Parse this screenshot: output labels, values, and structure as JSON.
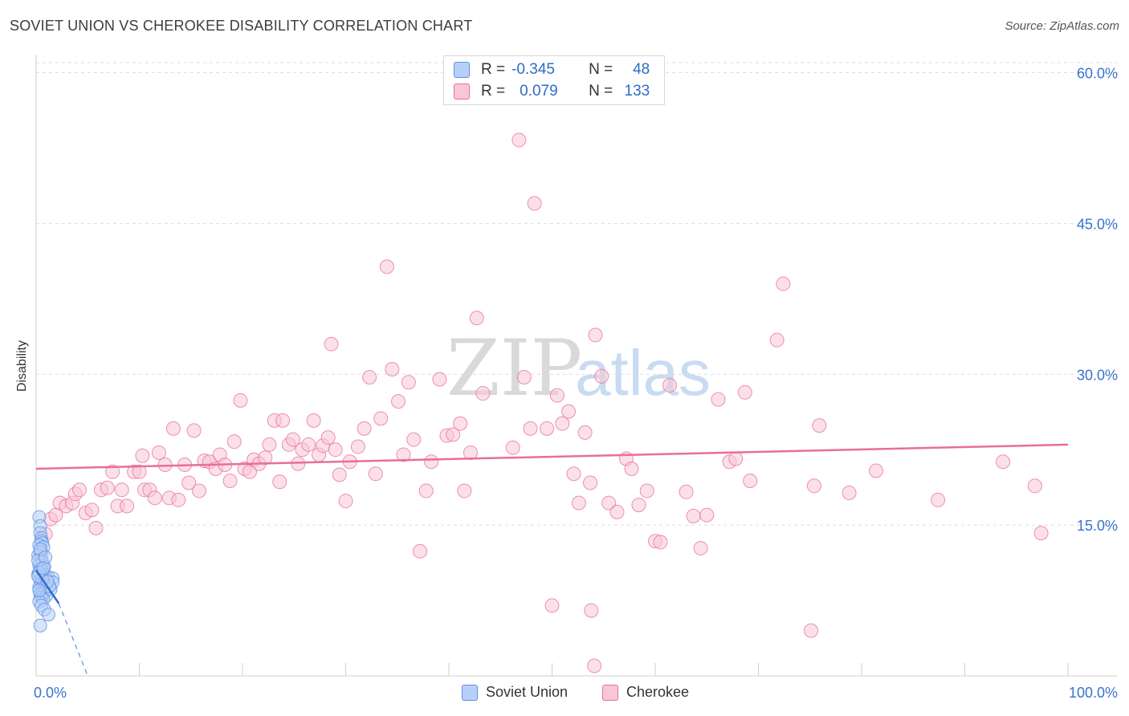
{
  "header": {
    "title": "SOVIET UNION VS CHEROKEE DISABILITY CORRELATION CHART",
    "source": "Source: ZipAtlas.com"
  },
  "watermark": {
    "part1": "ZIP",
    "part2": "atlas"
  },
  "legend": {
    "r_label": "R =",
    "n_label": "N =",
    "rows": [
      {
        "name": "Soviet Union",
        "r": "-0.345",
        "n": "48"
      },
      {
        "name": "Cherokee",
        "r": "0.079",
        "n": "133"
      }
    ]
  },
  "chart_data": {
    "type": "scatter",
    "title": "SOVIET UNION VS CHEROKEE DISABILITY CORRELATION CHART",
    "ylabel": "Disability",
    "xlabel": "",
    "xlim": [
      0,
      100
    ],
    "ylim": [
      0,
      61
    ],
    "x_tick_labels": [
      "0.0%",
      "100.0%"
    ],
    "y_ticks": [
      15,
      30,
      45,
      60
    ],
    "y_tick_labels": [
      "15.0%",
      "30.0%",
      "45.0%",
      "60.0%"
    ],
    "grid": "horizontal dashed",
    "legend_position": "top-center",
    "colors": {
      "soviet": "#5b8fe0",
      "soviet_fill": "#b7d0f7",
      "cherokee": "#e86e9a",
      "cherokee_fill": "#f7c6d7",
      "tick_text": "#3a72cf"
    },
    "series": [
      {
        "name": "Soviet Union",
        "r": -0.345,
        "n": 48,
        "trend": {
          "x": [
            0,
            2.2
          ],
          "y": [
            10.5,
            7.2
          ]
        },
        "trend_extension": {
          "x": [
            2.2,
            5
          ],
          "y": [
            7.2,
            0
          ]
        },
        "points": [
          [
            0.3,
            15.8
          ],
          [
            0.4,
            14.9
          ],
          [
            0.4,
            14.2
          ],
          [
            0.5,
            13.7
          ],
          [
            0.5,
            13.4
          ],
          [
            0.6,
            13.2
          ],
          [
            0.3,
            13.0
          ],
          [
            0.7,
            12.8
          ],
          [
            0.4,
            12.3
          ],
          [
            0.2,
            12.0
          ],
          [
            0.5,
            11.6
          ],
          [
            0.6,
            11.3
          ],
          [
            0.3,
            11.0
          ],
          [
            0.8,
            10.9
          ],
          [
            0.4,
            10.6
          ],
          [
            0.6,
            10.4
          ],
          [
            0.2,
            10.1
          ],
          [
            0.9,
            10.0
          ],
          [
            1.2,
            9.8
          ],
          [
            1.6,
            9.7
          ],
          [
            1.6,
            9.3
          ],
          [
            0.4,
            9.5
          ],
          [
            0.7,
            9.2
          ],
          [
            0.5,
            9.0
          ],
          [
            0.3,
            8.8
          ],
          [
            1.0,
            8.7
          ],
          [
            1.4,
            8.6
          ],
          [
            0.6,
            8.4
          ],
          [
            0.8,
            8.3
          ],
          [
            0.4,
            8.1
          ],
          [
            1.0,
            8.0
          ],
          [
            0.5,
            7.8
          ],
          [
            0.7,
            7.6
          ],
          [
            0.3,
            7.4
          ],
          [
            1.3,
            8.9
          ],
          [
            0.2,
            11.5
          ],
          [
            0.4,
            12.6
          ],
          [
            0.9,
            11.8
          ],
          [
            0.6,
            9.6
          ],
          [
            0.3,
            10.3
          ],
          [
            0.5,
            7.0
          ],
          [
            0.8,
            6.6
          ],
          [
            1.2,
            6.1
          ],
          [
            0.4,
            5.0
          ],
          [
            0.2,
            9.9
          ],
          [
            0.7,
            10.7
          ],
          [
            1.1,
            9.4
          ],
          [
            0.3,
            8.5
          ]
        ]
      },
      {
        "name": "Cherokee",
        "r": 0.079,
        "n": 133,
        "trend": {
          "x": [
            0,
            100
          ],
          "y": [
            20.6,
            23.0
          ]
        },
        "points": [
          [
            0.5,
            12.2
          ],
          [
            0.9,
            14.1
          ],
          [
            1.4,
            15.6
          ],
          [
            1.9,
            16.0
          ],
          [
            2.3,
            17.2
          ],
          [
            2.9,
            16.9
          ],
          [
            3.5,
            17.2
          ],
          [
            3.8,
            18.1
          ],
          [
            4.2,
            18.5
          ],
          [
            4.8,
            16.2
          ],
          [
            5.4,
            16.5
          ],
          [
            5.8,
            14.7
          ],
          [
            6.3,
            18.5
          ],
          [
            6.9,
            18.7
          ],
          [
            7.4,
            20.3
          ],
          [
            7.9,
            16.9
          ],
          [
            8.3,
            18.5
          ],
          [
            8.8,
            16.9
          ],
          [
            9.5,
            20.3
          ],
          [
            10.0,
            20.3
          ],
          [
            10.3,
            21.9
          ],
          [
            10.5,
            18.5
          ],
          [
            11.0,
            18.5
          ],
          [
            11.5,
            17.7
          ],
          [
            11.9,
            22.2
          ],
          [
            12.5,
            21.0
          ],
          [
            12.9,
            17.7
          ],
          [
            13.3,
            24.6
          ],
          [
            13.8,
            17.5
          ],
          [
            14.4,
            21.0
          ],
          [
            14.8,
            19.2
          ],
          [
            15.3,
            24.4
          ],
          [
            15.8,
            18.4
          ],
          [
            16.3,
            21.4
          ],
          [
            16.8,
            21.3
          ],
          [
            17.4,
            20.6
          ],
          [
            17.8,
            22.0
          ],
          [
            18.3,
            21.0
          ],
          [
            18.8,
            19.4
          ],
          [
            19.2,
            23.3
          ],
          [
            19.8,
            27.4
          ],
          [
            20.2,
            20.6
          ],
          [
            20.7,
            20.3
          ],
          [
            21.1,
            21.5
          ],
          [
            21.6,
            21.1
          ],
          [
            22.2,
            21.7
          ],
          [
            22.6,
            23.0
          ],
          [
            23.1,
            25.4
          ],
          [
            23.6,
            19.3
          ],
          [
            23.9,
            25.4
          ],
          [
            24.5,
            23.0
          ],
          [
            24.9,
            23.5
          ],
          [
            25.4,
            21.1
          ],
          [
            25.8,
            22.5
          ],
          [
            26.4,
            23.0
          ],
          [
            26.9,
            25.4
          ],
          [
            27.4,
            22.0
          ],
          [
            27.8,
            22.9
          ],
          [
            28.3,
            23.7
          ],
          [
            28.6,
            33.0
          ],
          [
            29.0,
            22.5
          ],
          [
            29.4,
            20.0
          ],
          [
            30.0,
            17.4
          ],
          [
            30.4,
            21.3
          ],
          [
            31.2,
            22.8
          ],
          [
            31.8,
            24.6
          ],
          [
            32.3,
            29.7
          ],
          [
            32.9,
            20.1
          ],
          [
            33.4,
            25.6
          ],
          [
            34.0,
            40.7
          ],
          [
            34.5,
            30.5
          ],
          [
            35.1,
            27.3
          ],
          [
            35.6,
            22.0
          ],
          [
            36.1,
            29.2
          ],
          [
            36.6,
            23.5
          ],
          [
            37.2,
            12.4
          ],
          [
            37.8,
            18.4
          ],
          [
            38.3,
            21.3
          ],
          [
            39.1,
            29.5
          ],
          [
            39.8,
            23.9
          ],
          [
            40.4,
            24.0
          ],
          [
            41.1,
            25.1
          ],
          [
            41.5,
            18.4
          ],
          [
            42.1,
            22.2
          ],
          [
            42.7,
            35.6
          ],
          [
            43.3,
            28.1
          ],
          [
            46.2,
            22.7
          ],
          [
            46.8,
            53.3
          ],
          [
            47.3,
            29.7
          ],
          [
            47.9,
            24.6
          ],
          [
            48.3,
            47.0
          ],
          [
            49.5,
            24.6
          ],
          [
            50.0,
            7.0
          ],
          [
            50.5,
            27.9
          ],
          [
            51.0,
            25.1
          ],
          [
            51.6,
            26.3
          ],
          [
            52.1,
            20.1
          ],
          [
            52.6,
            17.2
          ],
          [
            53.2,
            24.2
          ],
          [
            53.7,
            19.2
          ],
          [
            54.2,
            33.9
          ],
          [
            54.8,
            29.8
          ],
          [
            55.5,
            17.2
          ],
          [
            56.3,
            16.3
          ],
          [
            57.2,
            21.6
          ],
          [
            57.7,
            20.6
          ],
          [
            58.4,
            17.0
          ],
          [
            59.2,
            18.4
          ],
          [
            60.0,
            13.4
          ],
          [
            60.5,
            13.3
          ],
          [
            61.4,
            28.9
          ],
          [
            63.0,
            18.3
          ],
          [
            63.7,
            15.9
          ],
          [
            64.4,
            12.7
          ],
          [
            65.0,
            16.0
          ],
          [
            66.1,
            27.5
          ],
          [
            67.2,
            21.3
          ],
          [
            67.8,
            21.6
          ],
          [
            68.7,
            28.2
          ],
          [
            69.2,
            19.4
          ],
          [
            71.8,
            33.4
          ],
          [
            72.4,
            39.0
          ],
          [
            75.1,
            4.5
          ],
          [
            75.4,
            18.9
          ],
          [
            75.9,
            24.9
          ],
          [
            78.8,
            18.2
          ],
          [
            81.4,
            20.4
          ],
          [
            87.4,
            17.5
          ],
          [
            93.7,
            21.3
          ],
          [
            96.8,
            18.9
          ],
          [
            97.4,
            14.2
          ],
          [
            53.8,
            6.5
          ],
          [
            54.1,
            1.0
          ]
        ]
      }
    ]
  }
}
